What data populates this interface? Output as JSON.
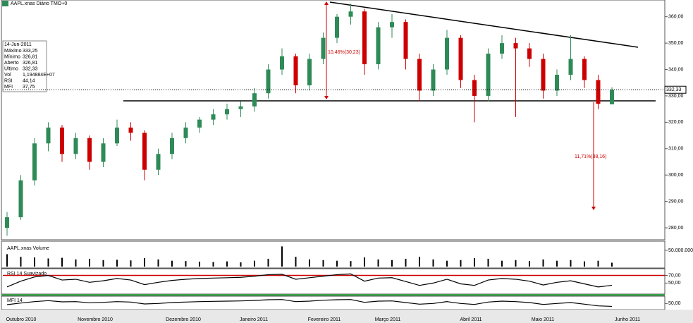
{
  "header": {
    "title": "AAPL.xnas Diário TMO+0"
  },
  "info_box": {
    "date": "14-Jun-2011",
    "rows": [
      {
        "label": "Máximo",
        "value": "333,25"
      },
      {
        "label": "Mínimo",
        "value": "326,81"
      },
      {
        "label": "Aberto",
        "value": "326,81"
      },
      {
        "label": "Último",
        "value": "332,33"
      },
      {
        "label": "Vol",
        "value": "1,194884E+07"
      },
      {
        "label": "RSI",
        "value": "44,14"
      },
      {
        "label": "MFI",
        "value": "37,75"
      }
    ]
  },
  "x_axis": {
    "months": [
      "Outubro 2010",
      "Novembro 2010",
      "Dezembro 2010",
      "Janeiro 2011",
      "Fevereiro 2011",
      "Março 2011",
      "Abril 2011",
      "Maio 2011",
      "Junho 2011"
    ]
  },
  "chart_data": [
    {
      "type": "candlestick",
      "up_color": "#2e8b57",
      "down_color": "#cc0000",
      "open": [
        280,
        284,
        298,
        312,
        318,
        308,
        314,
        305,
        312,
        318,
        316,
        302,
        308,
        314,
        318,
        321,
        323,
        325,
        326,
        331,
        340,
        345,
        334,
        344,
        352,
        360,
        362,
        342,
        356,
        358,
        344,
        332,
        340,
        352,
        336,
        330,
        346,
        350,
        348,
        344,
        332,
        338,
        344,
        336,
        326.81
      ],
      "high": [
        286,
        300,
        314,
        320,
        319,
        316,
        315,
        314,
        321,
        320,
        317,
        310,
        316,
        320,
        322,
        325,
        327,
        328,
        333,
        342,
        348,
        346,
        346,
        354,
        361,
        364.9,
        363,
        358,
        361,
        359,
        346,
        342,
        355,
        353,
        338,
        348,
        353,
        352,
        350,
        346,
        340,
        353,
        345,
        338,
        333.25
      ],
      "low": [
        277,
        283,
        296,
        309,
        305,
        306,
        302,
        303,
        311,
        313,
        298,
        300,
        306,
        312,
        316,
        319,
        321,
        322,
        324,
        329,
        338,
        331,
        332,
        342,
        350,
        357,
        338,
        340,
        352,
        340,
        328,
        330,
        338,
        333,
        320,
        328,
        344,
        322,
        341,
        329,
        330,
        336,
        333,
        325,
        326.81
      ],
      "close": [
        284,
        298,
        312,
        318,
        308,
        314,
        305,
        312,
        318,
        316,
        302,
        308,
        314,
        318,
        321,
        323,
        325,
        326,
        331,
        340,
        345,
        334,
        344,
        352,
        360,
        362,
        342,
        356,
        358,
        344,
        332,
        340,
        352,
        336,
        330,
        346,
        350,
        348,
        344,
        332,
        338,
        344,
        336,
        327,
        332.33
      ],
      "ylim": [
        276,
        365
      ],
      "yticks": [
        {
          "value": 280,
          "label": "280,00"
        },
        {
          "value": 290,
          "label": "290,00"
        },
        {
          "value": 300,
          "label": "300,00"
        },
        {
          "value": 310,
          "label": "310,00"
        },
        {
          "value": 320,
          "label": "320,00"
        },
        {
          "value": 330,
          "label": "330,00"
        },
        {
          "value": 340,
          "label": "340,00"
        },
        {
          "value": 350,
          "label": "350,00"
        },
        {
          "value": 360,
          "label": "360,00"
        }
      ],
      "last_price": {
        "value": 332.33,
        "label": "332,33"
      },
      "annotations": [
        "10,46%(30,23)",
        "11,71%(38,16)"
      ]
    },
    {
      "type": "bar",
      "title": "AAPL.xnas Volume",
      "color": "#000000",
      "values": [
        38000000,
        30000000,
        28000000,
        25000000,
        27000000,
        22000000,
        24000000,
        20000000,
        21000000,
        19000000,
        26000000,
        22000000,
        18000000,
        17000000,
        15000000,
        14000000,
        16000000,
        13000000,
        18000000,
        24000000,
        62000000,
        30000000,
        22000000,
        20000000,
        18000000,
        17000000,
        28000000,
        22000000,
        20000000,
        24000000,
        30000000,
        22000000,
        18000000,
        20000000,
        26000000,
        24000000,
        18000000,
        20000000,
        17000000,
        22000000,
        18000000,
        20000000,
        16000000,
        18000000,
        11948840
      ],
      "ylim": [
        0,
        65000000
      ],
      "yticks": [
        {
          "value": 50000000,
          "label": "50.000.000"
        }
      ]
    },
    {
      "type": "line",
      "title": "RSI 14 Suavizado",
      "color": "#000000",
      "ref_color": "#cc0000",
      "values": [
        40,
        55,
        66,
        70,
        58,
        60,
        52,
        56,
        62,
        58,
        46,
        52,
        57,
        60,
        62,
        63,
        64,
        65,
        68,
        72,
        73,
        60,
        64,
        68,
        72,
        74,
        55,
        63,
        64,
        54,
        44,
        50,
        60,
        48,
        44,
        58,
        62,
        60,
        55,
        45,
        52,
        56,
        48,
        40,
        44.14
      ],
      "ylim": [
        25,
        82
      ],
      "yticks": [
        {
          "value": 70,
          "label": "70,00"
        },
        {
          "value": 50,
          "label": "50,00"
        }
      ]
    },
    {
      "type": "line",
      "title": "MFI 14",
      "color": "#000000",
      "values": [
        45,
        52,
        58,
        62,
        57,
        58,
        53,
        55,
        58,
        56,
        48,
        50,
        54,
        56,
        58,
        59,
        60,
        61,
        63,
        66,
        67,
        58,
        60,
        64,
        66,
        67,
        55,
        60,
        61,
        54,
        47,
        50,
        58,
        50,
        46,
        56,
        60,
        58,
        54,
        46,
        50,
        54,
        47,
        40,
        37.75
      ],
      "ylim": [
        30,
        75
      ],
      "yticks": [
        {
          "value": 50,
          "label": "50,00"
        }
      ]
    }
  ]
}
